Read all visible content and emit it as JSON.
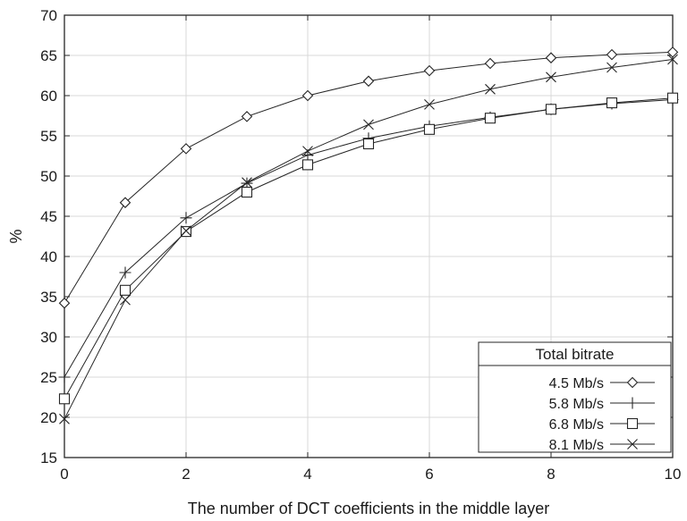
{
  "chart_data": {
    "type": "line",
    "title": "",
    "xlabel": "The number of DCT coefficients in the middle layer",
    "ylabel": "%",
    "xlim": [
      0,
      10
    ],
    "ylim": [
      15,
      70
    ],
    "xticks": [
      "0",
      "2",
      "4",
      "6",
      "8",
      "10"
    ],
    "yticks": [
      "15",
      "20",
      "25",
      "30",
      "35",
      "40",
      "45",
      "50",
      "55",
      "60",
      "65",
      "70"
    ],
    "grid": true,
    "legend": {
      "title": "Total bitrate",
      "position": "bottom-right"
    },
    "x": [
      0,
      1,
      2,
      3,
      4,
      5,
      6,
      7,
      8,
      9,
      10
    ],
    "series": [
      {
        "name": "4.5 Mb/s",
        "marker": "diamond",
        "values": [
          34.2,
          46.7,
          53.4,
          57.4,
          60.0,
          61.8,
          63.1,
          64.0,
          64.7,
          65.1,
          65.4
        ]
      },
      {
        "name": "5.8 Mb/s",
        "marker": "plus",
        "values": [
          25.0,
          38.0,
          44.8,
          49.1,
          52.6,
          54.7,
          56.2,
          57.3,
          58.3,
          59.0,
          59.5
        ]
      },
      {
        "name": "6.8 Mb/s",
        "marker": "square",
        "values": [
          22.3,
          35.8,
          43.1,
          48.0,
          51.4,
          54.0,
          55.8,
          57.2,
          58.3,
          59.1,
          59.7
        ]
      },
      {
        "name": "8.1 Mb/s",
        "marker": "x",
        "values": [
          19.8,
          34.6,
          43.2,
          49.2,
          53.1,
          56.4,
          58.9,
          60.8,
          62.3,
          63.5,
          64.5
        ]
      }
    ]
  }
}
